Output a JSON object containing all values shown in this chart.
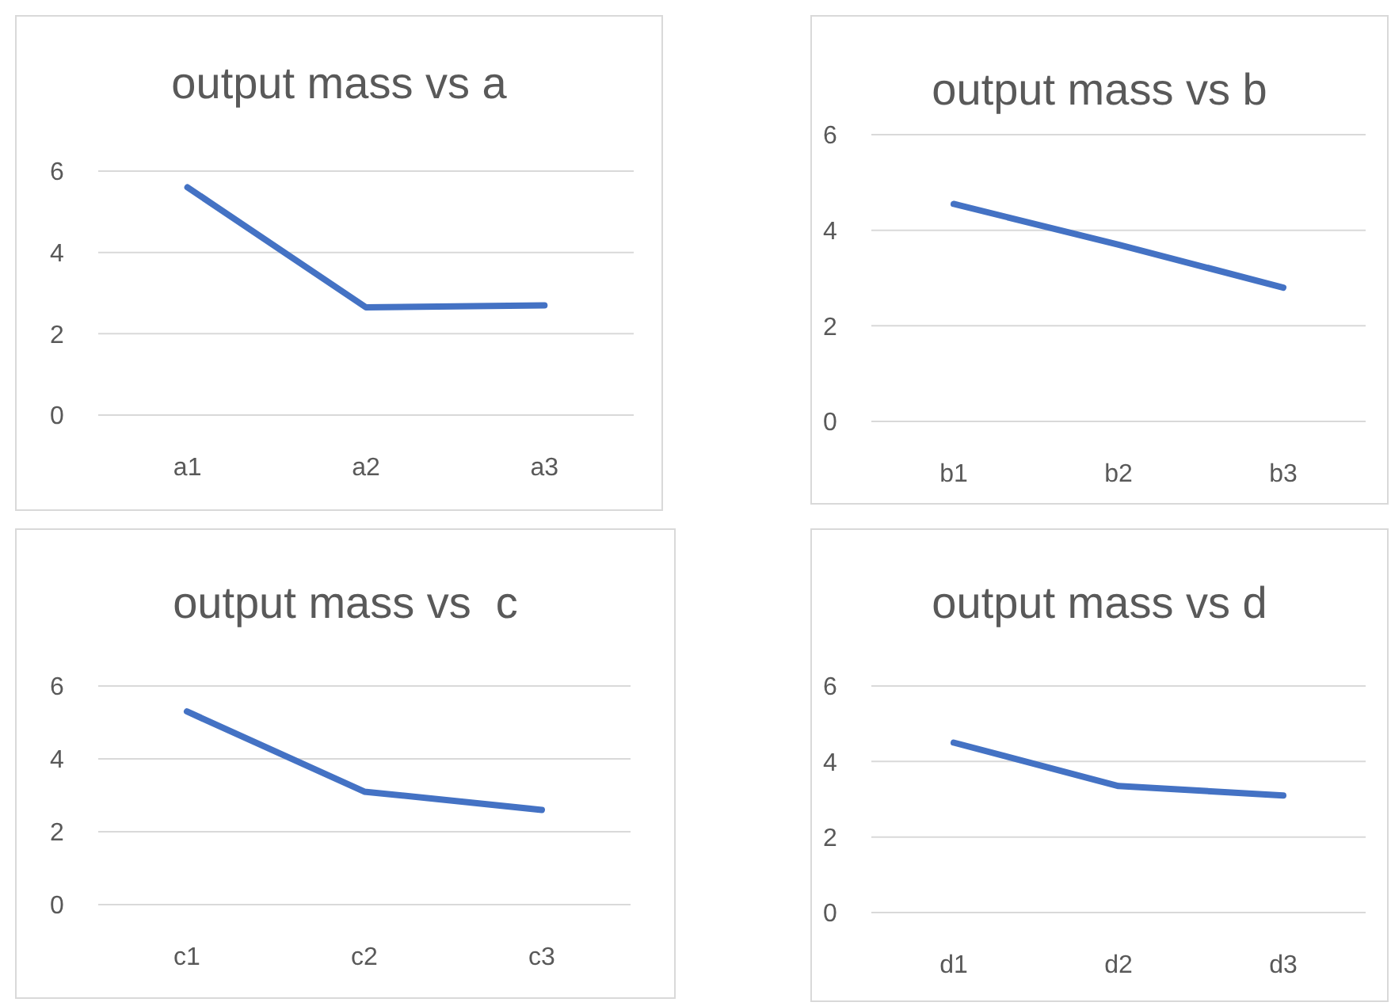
{
  "chart_data": [
    {
      "type": "line",
      "title": "output mass vs a",
      "categories": [
        "a1",
        "a2",
        "a3"
      ],
      "series": [
        {
          "color": "#4472c4",
          "values": [
            5.6,
            2.65,
            2.7
          ]
        }
      ],
      "ylim": [
        0,
        6
      ],
      "yticks": [
        0,
        2,
        4,
        6
      ],
      "grid": "y",
      "marker": "none"
    },
    {
      "type": "line",
      "title": "output mass vs b",
      "categories": [
        "b1",
        "b2",
        "b3"
      ],
      "series": [
        {
          "color": "#4472c4",
          "values": [
            4.55,
            3.7,
            2.8
          ]
        }
      ],
      "ylim": [
        0,
        6
      ],
      "yticks": [
        0,
        2,
        4,
        6
      ],
      "grid": "y",
      "marker": "none"
    },
    {
      "type": "line",
      "title": "output mass vs  c",
      "categories": [
        "c1",
        "c2",
        "c3"
      ],
      "series": [
        {
          "color": "#4472c4",
          "values": [
            5.3,
            3.1,
            2.6
          ]
        }
      ],
      "ylim": [
        0,
        6
      ],
      "yticks": [
        0,
        2,
        4,
        6
      ],
      "grid": "y",
      "marker": "none"
    },
    {
      "type": "line",
      "title": "output mass vs d",
      "categories": [
        "d1",
        "d2",
        "d3"
      ],
      "series": [
        {
          "color": "#4472c4",
          "values": [
            4.5,
            3.35,
            3.1
          ]
        }
      ],
      "ylim": [
        0,
        6
      ],
      "yticks": [
        0,
        2,
        4,
        6
      ],
      "grid": "y",
      "marker": "none"
    }
  ]
}
